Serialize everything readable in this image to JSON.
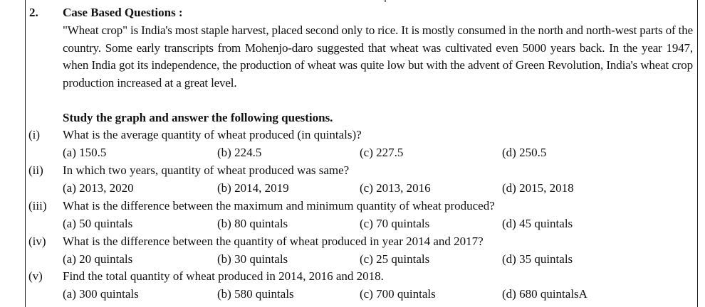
{
  "question_number": "2.",
  "heading": "Case Based Questions :",
  "passage": "\"Wheat crop\" is India's most staple harvest, placed second only to rice. It is mostly consumed in the north and north-west parts of the country. Some early transcripts from Mohenjo-daro suggested that wheat was cultivated even 5000 years back. In the year 1947, when India got its independence, the production of wheat was quite low but with the advent of Green Revolution, India's wheat crop production increased at a great level.",
  "instruction": "Study the graph and answer the following questions.",
  "questions": [
    {
      "label": "(i)",
      "text": "What is the average quantity of wheat produced (in quintals)?",
      "options": [
        "(a) 150.5",
        "(b) 224.5",
        "(c) 227.5",
        "(d) 250.5"
      ]
    },
    {
      "label": "(ii)",
      "text": "In which two years, quantity of wheat produced was same?",
      "options": [
        "(a) 2013, 2020",
        "(b) 2014, 2019",
        "(c) 2013, 2016",
        "(d) 2015, 2018"
      ]
    },
    {
      "label": "(iii)",
      "text": "What is the difference between the maximum and minimum quantity of wheat produced?",
      "options": [
        "(a) 50 quintals",
        "(b) 80 quintals",
        "(c) 70 quintals",
        "(d) 45 quintals"
      ]
    },
    {
      "label": "(iv)",
      "text": "What is the difference between the quantity of wheat produced in year 2014 and 2017?",
      "options": [
        "(a) 20 quintals",
        "(b) 30 quintals",
        "(c) 25 quintals",
        "(d) 35 quintals"
      ]
    },
    {
      "label": "(v)",
      "text": "Find the total quantity of wheat produced in 2014, 2016 and 2018.",
      "options": [
        "(a) 300 quintals",
        "(b) 580 quintals",
        "(c) 700 quintals",
        "(d) 680 quintalsA"
      ]
    }
  ]
}
